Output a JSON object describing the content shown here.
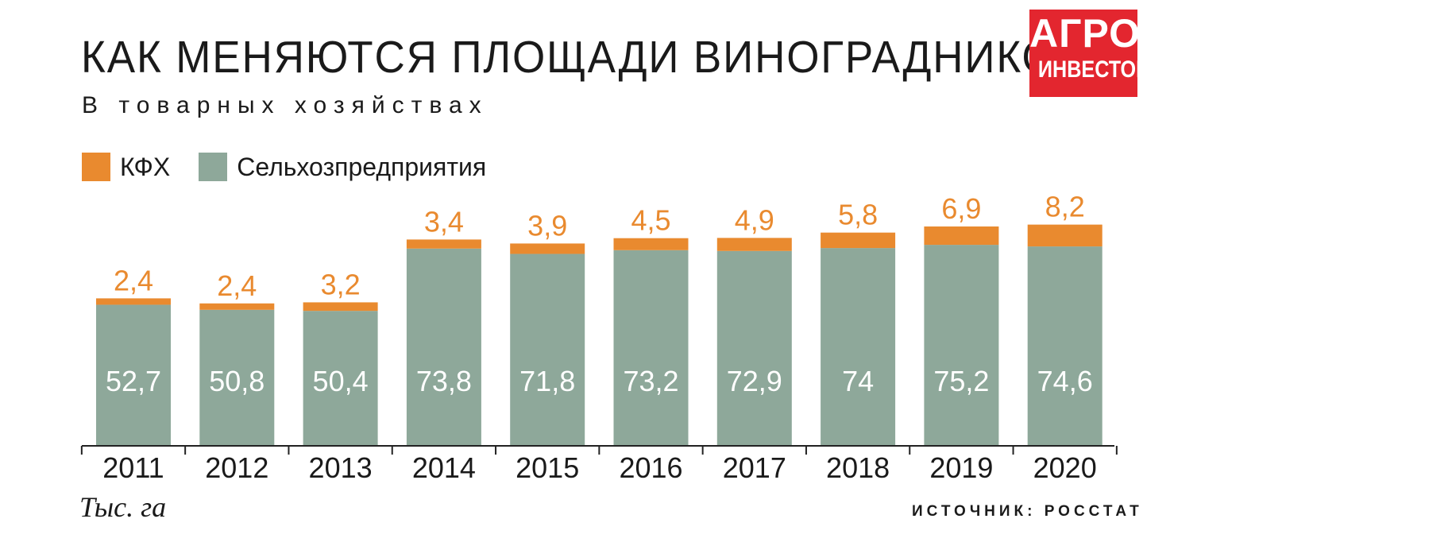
{
  "colors": {
    "kfh": "#e98a2f",
    "agro": "#8ea89a",
    "axis": "#222222",
    "logo_bg": "#e3262f"
  },
  "logo": {
    "line1": "АГРО",
    "line2": "ИНВЕСТОР"
  },
  "chart_data": {
    "type": "bar",
    "stacked": true,
    "title": "КАК МЕНЯЮТСЯ ПЛОЩАДИ ВИНОГРАДНИКОВ",
    "subtitle": "В товарных хозяйствах",
    "unit_label": "Тыс. га",
    "source": "ИСТОЧНИК: РОССТАТ",
    "legend_position": "top-left",
    "categories": [
      "2011",
      "2012",
      "2013",
      "2014",
      "2015",
      "2016",
      "2017",
      "2018",
      "2019",
      "2020"
    ],
    "series": [
      {
        "name": "Сельхозпредприятия",
        "values": [
          52.7,
          50.8,
          50.4,
          73.8,
          71.8,
          73.2,
          72.9,
          74,
          75.2,
          74.6
        ],
        "labels": [
          "52,7",
          "50,8",
          "50,4",
          "73,8",
          "71,8",
          "73,2",
          "72,9",
          "74",
          "75,2",
          "74,6"
        ]
      },
      {
        "name": "КФХ",
        "values": [
          2.4,
          2.4,
          3.2,
          3.4,
          3.9,
          4.5,
          4.9,
          5.8,
          6.9,
          8.2
        ],
        "labels": [
          "2,4",
          "2,4",
          "3,2",
          "3,4",
          "3,9",
          "4,5",
          "4,9",
          "5,8",
          "6,9",
          "8,2"
        ]
      }
    ],
    "ylim": [
      0,
      85
    ],
    "grid": false
  }
}
